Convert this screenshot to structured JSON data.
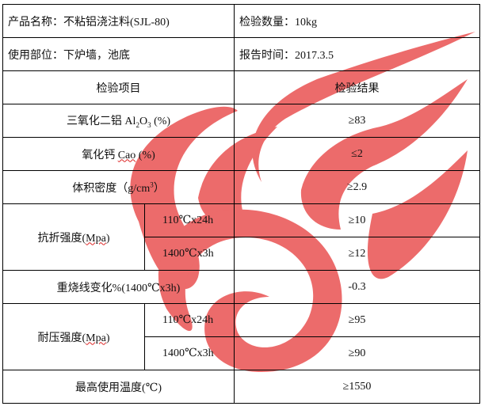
{
  "colors": {
    "watermark": "#e02020",
    "border": "#000000"
  },
  "watermark_icon": "flame-logo",
  "info": {
    "product": "产品名称：不粘铝浇注料(SJL-80)",
    "quantity": "检验数量：10kg",
    "usage": "使用部位：下炉墙，池底",
    "report_time": "报告时间：2017.3.5"
  },
  "header": {
    "item": "检验项目",
    "result": "检验结果"
  },
  "rows": {
    "al2o3": {
      "label_pre": "三氧化二铝  Al",
      "sub1": "2",
      "mid": "O",
      "sub2": "3",
      "label_post": " (%)",
      "value": "≥83"
    },
    "cao": {
      "label_pre": "氧化钙 ",
      "unit": "Cao",
      "label_post": " (%)",
      "value": "≤2"
    },
    "density": {
      "label_pre": "体积密度（g/cm",
      "sup": "3",
      "label_post": "）",
      "value": "≥2.9"
    },
    "flexural": {
      "label_pre": "抗折强度(",
      "unit": "Mpa",
      "label_post": ")",
      "cond1": "110℃x24h",
      "value1": "≥10",
      "cond2": "1400℃x3h",
      "value2": "≥12"
    },
    "reheat": {
      "label": "重烧线变化%(1400℃x3h)",
      "value": "-0.3"
    },
    "compressive": {
      "label_pre": "耐压强度(",
      "unit": "Mpa",
      "label_post": ")",
      "cond1": "110℃x24h",
      "value1": "≥95",
      "cond2": "1400℃x3h",
      "value2": "≥90"
    },
    "max_temp": {
      "label": "最高使用温度(℃)",
      "value": "≥1550"
    }
  }
}
